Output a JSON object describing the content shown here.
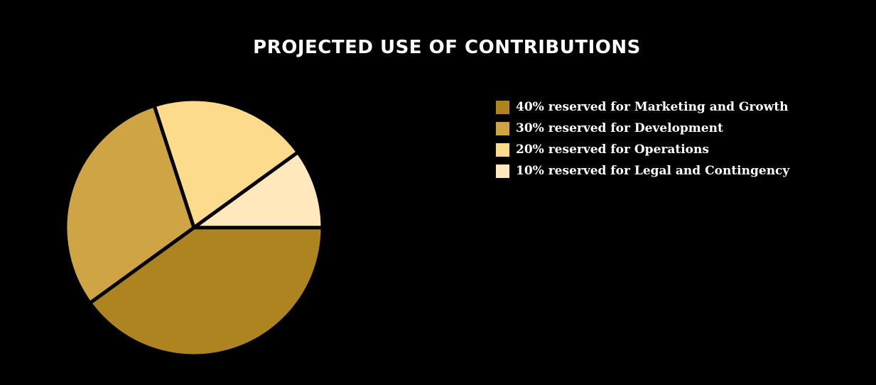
{
  "chart_data": {
    "type": "pie",
    "title": "PROJECTED USE OF CONTRIBUTIONS",
    "legend_position": "right",
    "categories": [
      "40% reserved for Marketing and Growth",
      "30% reserved for Development",
      "20% reserved for Operations",
      "10% reserved for Legal and Contingency"
    ],
    "values": [
      40,
      30,
      20,
      10
    ],
    "colors": [
      "#ae8421",
      "#cea444",
      "#fcdc8c",
      "#fee8bc"
    ],
    "slice_border_color": "#000000"
  }
}
